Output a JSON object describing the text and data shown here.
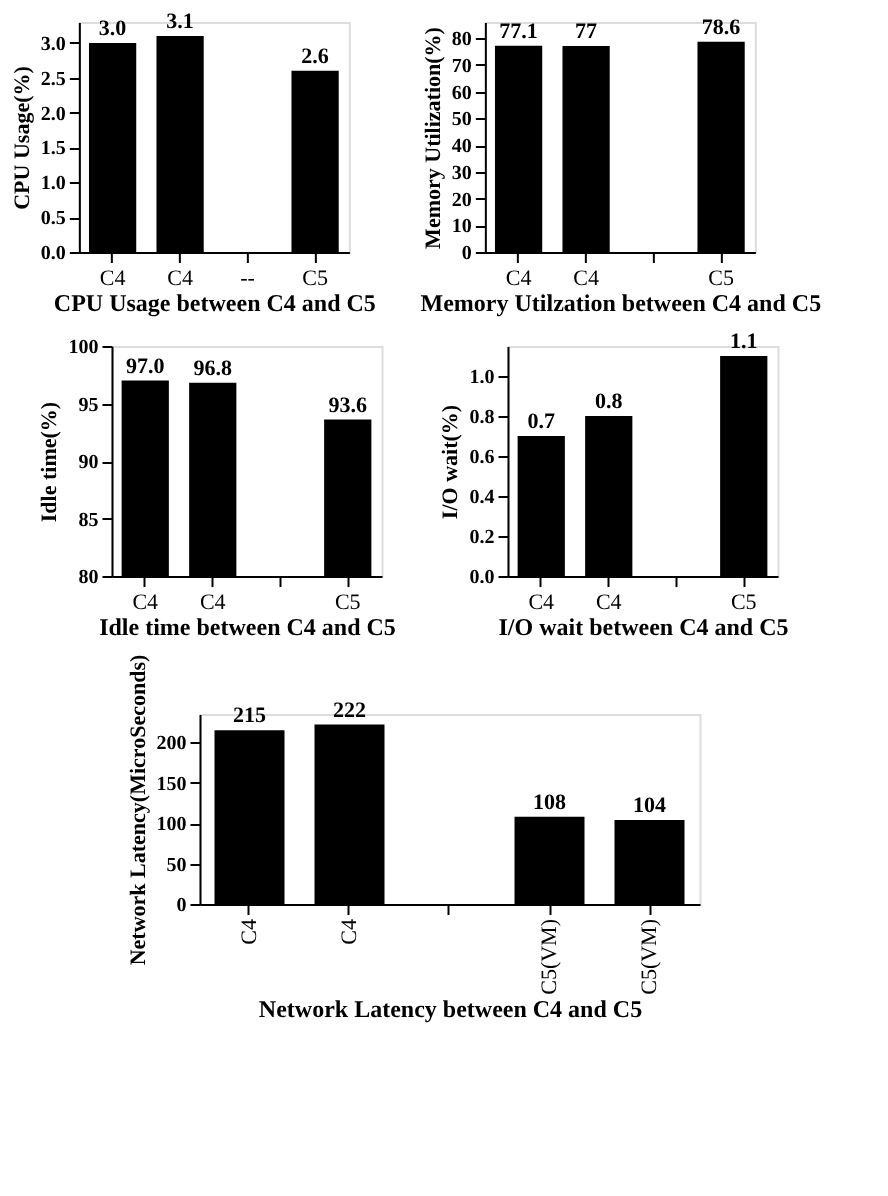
{
  "chart_data": [
    {
      "type": "bar",
      "xlabel": "CPU Usage between C4 and C5",
      "ylabel": "CPU Usage(%)",
      "categories": [
        "C4",
        "C4",
        "--",
        "C5"
      ],
      "values": [
        3.0,
        3.1,
        null,
        2.6
      ],
      "value_labels": [
        "3.0",
        "3.1",
        null,
        "2.6"
      ],
      "color": "#000000",
      "ylim": [
        0,
        3.3
      ],
      "yticks": [
        {
          "value": 0,
          "label": "0.0"
        },
        0.5,
        {
          "value": 1,
          "label": "1.0"
        },
        1.5,
        {
          "value": 2,
          "label": "2.0"
        },
        2.5,
        {
          "value": 3,
          "label": "3.0"
        }
      ],
      "grid": false
    },
    {
      "type": "bar",
      "xlabel": "Memory Utilzation between C4 and C5",
      "ylabel": "Memory Utilization(%)",
      "categories": [
        "C4",
        "C4",
        null,
        "C5"
      ],
      "values": [
        77.1,
        77,
        null,
        78.6
      ],
      "value_labels": [
        "77.1",
        "77",
        null,
        "78.6"
      ],
      "color": "#000000",
      "ylim": [
        0,
        86
      ],
      "yticks": [
        0,
        10,
        20,
        30,
        40,
        50,
        60,
        70,
        80
      ],
      "grid": false
    },
    {
      "type": "bar",
      "xlabel": "Idle time between C4 and C5",
      "ylabel": "Idle time(%)",
      "categories": [
        "C4",
        "C4",
        null,
        "C5"
      ],
      "values": [
        97.0,
        96.8,
        null,
        93.6
      ],
      "value_labels": [
        "97.0",
        "96.8",
        null,
        "93.6"
      ],
      "color": "#000000",
      "ylim": [
        80,
        100
      ],
      "yticks": [
        80,
        85,
        90,
        95,
        100
      ],
      "grid": false
    },
    {
      "type": "bar",
      "xlabel": "I/O wait between C4 and C5",
      "ylabel": "I/O wait(%)",
      "categories": [
        "C4",
        "C4",
        null,
        "C5"
      ],
      "values": [
        0.7,
        0.8,
        null,
        1.1
      ],
      "value_labels": [
        "0.7",
        "0.8",
        null,
        "1.1"
      ],
      "color": "#000000",
      "ylim": [
        0,
        1.15
      ],
      "yticks": [
        {
          "value": 0,
          "label": "0.0"
        },
        0.2,
        0.4,
        0.6,
        0.8,
        {
          "value": 1,
          "label": "1.0"
        }
      ],
      "grid": false
    },
    {
      "type": "bar",
      "xlabel": "Network Latency between C4 and C5",
      "ylabel": "Network Latency(MicroSeconds)",
      "categories": [
        "C4",
        "C4",
        null,
        "C5(VM)",
        "C5(VM)"
      ],
      "values": [
        215,
        222,
        null,
        108,
        104
      ],
      "value_labels": [
        "215",
        "222",
        null,
        "108",
        "104"
      ],
      "color": "#000000",
      "ylim": [
        0,
        235
      ],
      "yticks": [
        0,
        50,
        100,
        150,
        200
      ],
      "grid": false
    }
  ]
}
